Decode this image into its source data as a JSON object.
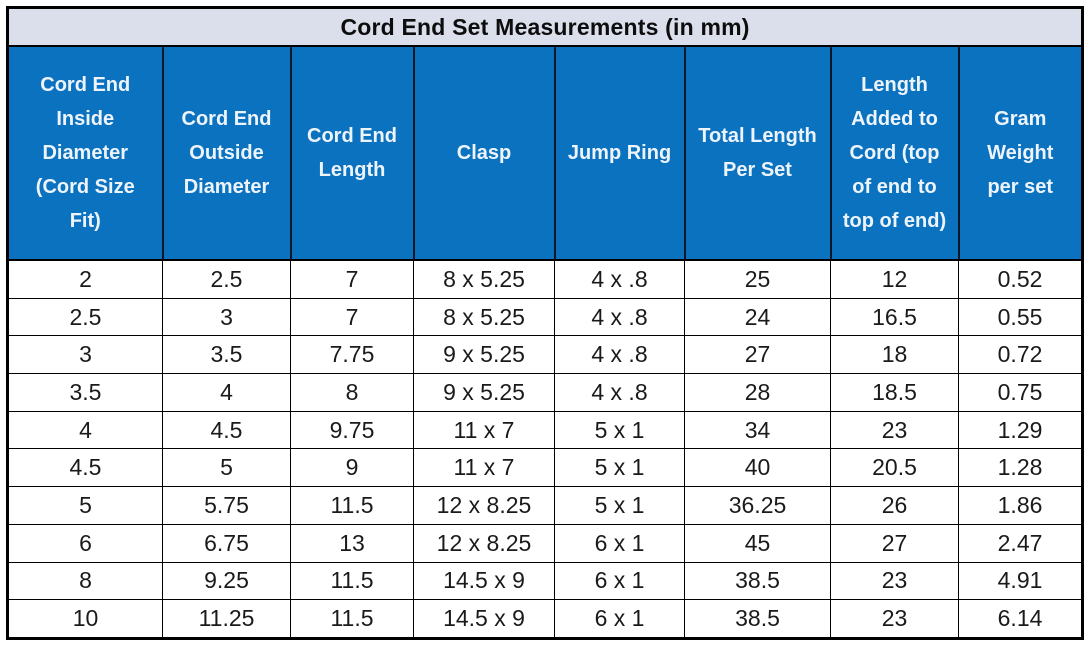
{
  "title": "Cord End Set Measurements (in mm)",
  "table": {
    "columns": [
      "Cord End Inside Diameter (Cord Size Fit)",
      "Cord End Outside Diameter",
      "Cord End Length",
      "Clasp",
      "Jump Ring",
      "Total Length Per Set",
      "Length Added to Cord (top of end to top of end)",
      "Gram Weight per set"
    ],
    "rows": [
      [
        "2",
        "2.5",
        "7",
        "8 x 5.25",
        "4 x .8",
        "25",
        "12",
        "0.52"
      ],
      [
        "2.5",
        "3",
        "7",
        "8 x 5.25",
        "4 x .8",
        "24",
        "16.5",
        "0.55"
      ],
      [
        "3",
        "3.5",
        "7.75",
        "9 x 5.25",
        "4 x .8",
        "27",
        "18",
        "0.72"
      ],
      [
        "3.5",
        "4",
        "8",
        "9 x 5.25",
        "4 x .8",
        "28",
        "18.5",
        "0.75"
      ],
      [
        "4",
        "4.5",
        "9.75",
        "11 x 7",
        "5 x 1",
        "34",
        "23",
        "1.29"
      ],
      [
        "4.5",
        "5",
        "9",
        "11 x 7",
        "5 x 1",
        "40",
        "20.5",
        "1.28"
      ],
      [
        "5",
        "5.75",
        "11.5",
        "12 x 8.25",
        "5 x 1",
        "36.25",
        "26",
        "1.86"
      ],
      [
        "6",
        "6.75",
        "13",
        "12 x 8.25",
        "6 x 1",
        "45",
        "27",
        "2.47"
      ],
      [
        "8",
        "9.25",
        "11.5",
        "14.5 x 9",
        "6 x 1",
        "38.5",
        "23",
        "4.91"
      ],
      [
        "10",
        "11.25",
        "11.5",
        "14.5 x 9",
        "6 x 1",
        "38.5",
        "23",
        "6.14"
      ]
    ]
  },
  "colors": {
    "header_bg": "#0b72c0",
    "header_text": "#eef4fb",
    "title_bg": "#dbdfec",
    "body_text": "#1a1a1a",
    "border": "#000000"
  }
}
